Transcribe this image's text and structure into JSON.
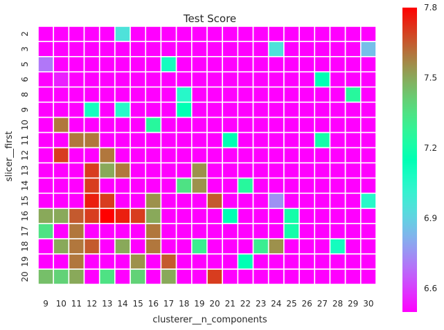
{
  "chart_data": {
    "type": "heatmap",
    "title": "Test Score",
    "xlabel": "clusterer__n_components",
    "ylabel": "slicer__first",
    "x_categories": [
      "9",
      "10",
      "11",
      "12",
      "13",
      "14",
      "15",
      "16",
      "17",
      "18",
      "19",
      "20",
      "21",
      "22",
      "23",
      "24",
      "25",
      "26",
      "27",
      "28",
      "29",
      "30"
    ],
    "y_categories": [
      "2",
      "3",
      "5",
      "6",
      "8",
      "9",
      "10",
      "11",
      "12",
      "13",
      "14",
      "15",
      "16",
      "17",
      "18",
      "19",
      "20"
    ],
    "colorbar": {
      "min": 6.5,
      "max": 7.8,
      "ticks": [
        "6.6",
        "6.9",
        "7.2",
        "7.5",
        "7.8"
      ],
      "colormap": "rainbow"
    },
    "base_value": 6.5,
    "cells": [
      [
        0,
        5,
        6.95
      ],
      [
        1,
        15,
        6.95
      ],
      [
        1,
        21,
        6.85
      ],
      [
        2,
        0,
        6.7
      ],
      [
        2,
        8,
        7.1
      ],
      [
        3,
        1,
        6.55
      ],
      [
        3,
        18,
        7.15
      ],
      [
        4,
        9,
        7.05
      ],
      [
        4,
        20,
        7.25
      ],
      [
        5,
        3,
        7.1
      ],
      [
        5,
        5,
        7.05
      ],
      [
        5,
        9,
        7.15
      ],
      [
        6,
        1,
        7.6
      ],
      [
        6,
        7,
        7.25
      ],
      [
        7,
        2,
        7.6
      ],
      [
        7,
        3,
        7.6
      ],
      [
        7,
        12,
        7.15
      ],
      [
        7,
        18,
        7.2
      ],
      [
        8,
        1,
        7.7
      ],
      [
        8,
        4,
        7.6
      ],
      [
        9,
        3,
        7.7
      ],
      [
        9,
        4,
        7.5
      ],
      [
        9,
        5,
        7.6
      ],
      [
        9,
        10,
        7.55
      ],
      [
        10,
        3,
        7.7
      ],
      [
        10,
        9,
        7.35
      ],
      [
        10,
        10,
        7.55
      ],
      [
        10,
        13,
        7.25
      ],
      [
        11,
        3,
        7.75
      ],
      [
        11,
        4,
        7.7
      ],
      [
        11,
        7,
        7.55
      ],
      [
        11,
        11,
        7.65
      ],
      [
        11,
        15,
        6.75
      ],
      [
        11,
        21,
        7.05
      ],
      [
        12,
        0,
        7.5
      ],
      [
        12,
        1,
        7.5
      ],
      [
        12,
        2,
        7.65
      ],
      [
        12,
        3,
        7.7
      ],
      [
        12,
        4,
        7.8
      ],
      [
        12,
        5,
        7.75
      ],
      [
        12,
        6,
        7.7
      ],
      [
        12,
        7,
        7.5
      ],
      [
        12,
        12,
        7.15
      ],
      [
        12,
        16,
        7.2
      ],
      [
        13,
        0,
        7.35
      ],
      [
        13,
        2,
        7.6
      ],
      [
        13,
        7,
        7.6
      ],
      [
        13,
        16,
        7.2
      ],
      [
        14,
        1,
        7.5
      ],
      [
        14,
        2,
        7.6
      ],
      [
        14,
        3,
        7.65
      ],
      [
        14,
        5,
        7.5
      ],
      [
        14,
        7,
        7.6
      ],
      [
        14,
        10,
        7.3
      ],
      [
        14,
        14,
        7.3
      ],
      [
        14,
        15,
        7.55
      ],
      [
        14,
        19,
        7.1
      ],
      [
        15,
        2,
        7.6
      ],
      [
        15,
        6,
        7.55
      ],
      [
        15,
        8,
        7.65
      ],
      [
        15,
        13,
        7.15
      ],
      [
        16,
        0,
        7.45
      ],
      [
        16,
        1,
        7.4
      ],
      [
        16,
        2,
        7.5
      ],
      [
        16,
        4,
        7.35
      ],
      [
        16,
        6,
        7.4
      ],
      [
        16,
        8,
        7.5
      ],
      [
        16,
        11,
        7.7
      ]
    ]
  }
}
